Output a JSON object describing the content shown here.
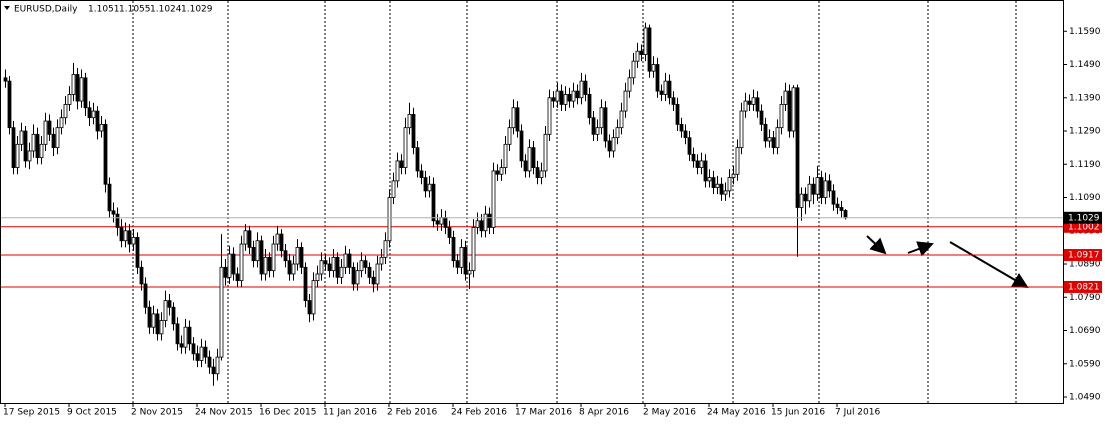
{
  "chart_data": {
    "type": "candlestick",
    "title": "EURUSD,Daily",
    "up_color": "#ffffff",
    "down_color": "#000000",
    "level_color": "#e00000",
    "grid": false,
    "ylim": [
      1.0472,
      1.1681
    ],
    "yticks": [
      {
        "value": 1.159,
        "label": "1.1590"
      },
      {
        "value": 1.149,
        "label": "1.1490"
      },
      {
        "value": 1.139,
        "label": "1.1390"
      },
      {
        "value": 1.129,
        "label": "1.1290"
      },
      {
        "value": 1.119,
        "label": "1.1190"
      },
      {
        "value": 1.109,
        "label": "1.1090"
      },
      {
        "value": 1.099,
        "label": "1.0990"
      },
      {
        "value": 1.089,
        "label": "1.0890"
      },
      {
        "value": 1.079,
        "label": "1.0790"
      },
      {
        "value": 1.069,
        "label": "1.0690"
      },
      {
        "value": 1.059,
        "label": "1.0590"
      },
      {
        "value": 1.049,
        "label": "1.0490"
      }
    ],
    "levels": [
      1.1002,
      1.0917,
      1.0821
    ],
    "categories": [
      "17 Sep 2015",
      null,
      null,
      null,
      null,
      null,
      null,
      null,
      null,
      null,
      null,
      null,
      null,
      null,
      null,
      null,
      "9 Oct 2015",
      null,
      null,
      null,
      null,
      null,
      null,
      null,
      null,
      null,
      null,
      null,
      null,
      null,
      null,
      null,
      "2 Nov 2015",
      null,
      null,
      null,
      null,
      null,
      null,
      null,
      null,
      null,
      null,
      null,
      null,
      null,
      null,
      null,
      "24 Nov 2015",
      null,
      null,
      null,
      null,
      null,
      null,
      null,
      null,
      null,
      null,
      null,
      null,
      null,
      null,
      null,
      "16 Dec 2015",
      null,
      null,
      null,
      null,
      null,
      null,
      null,
      null,
      null,
      null,
      null,
      null,
      null,
      null,
      null,
      "11 Jan 2016",
      null,
      null,
      null,
      null,
      null,
      null,
      null,
      null,
      null,
      null,
      null,
      null,
      null,
      null,
      null,
      "2 Feb 2016",
      null,
      null,
      null,
      null,
      null,
      null,
      null,
      null,
      null,
      null,
      null,
      null,
      null,
      null,
      null,
      "24 Feb 2016",
      null,
      null,
      null,
      null,
      null,
      null,
      null,
      null,
      null,
      null,
      null,
      null,
      null,
      null,
      null,
      "17 Mar 2016",
      null,
      null,
      null,
      null,
      null,
      null,
      null,
      null,
      null,
      null,
      null,
      null,
      null,
      null,
      null,
      "8 Apr 2016",
      null,
      null,
      null,
      null,
      null,
      null,
      null,
      null,
      null,
      null,
      null,
      null,
      null,
      null,
      null,
      "2 May 2016",
      null,
      null,
      null,
      null,
      null,
      null,
      null,
      null,
      null,
      null,
      null,
      null,
      null,
      null,
      null,
      "24 May 2016",
      null,
      null,
      null,
      null,
      null,
      null,
      null,
      null,
      null,
      null,
      null,
      null,
      null,
      null,
      null,
      "15 Jun 2016",
      null,
      null,
      null,
      null,
      null,
      null,
      null,
      null,
      null,
      null,
      null,
      null,
      null,
      null,
      null,
      "7 Jul 2016",
      null,
      null
    ],
    "ohlc": [
      [
        1.145,
        1.1475,
        1.142,
        1.144
      ],
      [
        1.144,
        1.1455,
        1.128,
        1.13
      ],
      [
        1.13,
        1.132,
        1.116,
        1.118
      ],
      [
        1.118,
        1.1275,
        1.116,
        1.125
      ],
      [
        1.125,
        1.1315,
        1.123,
        1.129
      ],
      [
        1.129,
        1.1305,
        1.118,
        1.12
      ],
      [
        1.12,
        1.1255,
        1.1175,
        1.123
      ],
      [
        1.123,
        1.131,
        1.121,
        1.128
      ],
      [
        1.128,
        1.13,
        1.119,
        1.121
      ],
      [
        1.121,
        1.1275,
        1.119,
        1.125
      ],
      [
        1.125,
        1.1345,
        1.123,
        1.132
      ],
      [
        1.132,
        1.134,
        1.126,
        1.128
      ],
      [
        1.128,
        1.13,
        1.1215,
        1.124
      ],
      [
        1.124,
        1.1325,
        1.122,
        1.13
      ],
      [
        1.13,
        1.1355,
        1.128,
        1.133
      ],
      [
        1.133,
        1.1395,
        1.131,
        1.137
      ],
      [
        1.137,
        1.1425,
        1.135,
        1.14
      ],
      [
        1.14,
        1.1495,
        1.138,
        1.146
      ],
      [
        1.146,
        1.148,
        1.1355,
        1.138
      ],
      [
        1.138,
        1.1475,
        1.136,
        1.145
      ],
      [
        1.145,
        1.1465,
        1.1335,
        1.136
      ],
      [
        1.136,
        1.138,
        1.1305,
        1.133
      ],
      [
        1.133,
        1.1375,
        1.131,
        1.135
      ],
      [
        1.135,
        1.1365,
        1.1265,
        1.129
      ],
      [
        1.129,
        1.1335,
        1.127,
        1.131
      ],
      [
        1.131,
        1.1325,
        1.1105,
        1.113
      ],
      [
        1.113,
        1.115,
        1.103,
        1.105
      ],
      [
        1.105,
        1.1075,
        1.1015,
        1.104
      ],
      [
        1.104,
        1.106,
        1.0975,
        1.1
      ],
      [
        1.1,
        1.1025,
        1.094,
        1.096
      ],
      [
        1.096,
        1.1015,
        1.094,
        1.099
      ],
      [
        1.099,
        1.101,
        1.0925,
        1.095
      ],
      [
        1.095,
        1.0995,
        1.093,
        1.097
      ],
      [
        1.097,
        1.0985,
        1.086,
        1.088
      ],
      [
        1.088,
        1.09,
        1.081,
        1.083
      ],
      [
        1.083,
        1.085,
        1.074,
        1.076
      ],
      [
        1.076,
        1.078,
        1.068,
        1.07
      ],
      [
        1.07,
        1.0765,
        1.068,
        1.074
      ],
      [
        1.074,
        1.0755,
        1.066,
        1.068
      ],
      [
        1.068,
        1.0745,
        1.066,
        1.072
      ],
      [
        1.072,
        1.081,
        1.07,
        1.078
      ],
      [
        1.078,
        1.08,
        1.0735,
        1.076
      ],
      [
        1.076,
        1.0775,
        1.069,
        1.071
      ],
      [
        1.071,
        1.073,
        1.063,
        1.065
      ],
      [
        1.065,
        1.0675,
        1.062,
        1.064
      ],
      [
        1.064,
        1.0725,
        1.062,
        1.07
      ],
      [
        1.07,
        1.072,
        1.063,
        1.065
      ],
      [
        1.065,
        1.067,
        1.06,
        1.062
      ],
      [
        1.062,
        1.0645,
        1.058,
        1.06
      ],
      [
        1.06,
        1.0665,
        1.058,
        1.064
      ],
      [
        1.064,
        1.066,
        1.059,
        1.061
      ],
      [
        1.061,
        1.063,
        1.056,
        1.058
      ],
      [
        1.058,
        1.0605,
        1.0524,
        1.056
      ],
      [
        1.056,
        1.0635,
        1.054,
        1.061
      ],
      [
        1.061,
        1.098,
        1.06,
        1.088
      ],
      [
        1.088,
        1.0905,
        1.0825,
        1.085
      ],
      [
        1.085,
        1.0945,
        1.083,
        1.092
      ],
      [
        1.092,
        1.094,
        1.084,
        1.086
      ],
      [
        1.086,
        1.088,
        1.082,
        1.084
      ],
      [
        1.084,
        1.0975,
        1.082,
        1.095
      ],
      [
        1.095,
        1.101,
        1.093,
        1.099
      ],
      [
        1.099,
        1.1005,
        1.092,
        1.094
      ],
      [
        1.094,
        1.096,
        1.088,
        1.09
      ],
      [
        1.09,
        1.0985,
        1.088,
        1.096
      ],
      [
        1.096,
        1.0975,
        1.084,
        1.086
      ],
      [
        1.086,
        1.0935,
        1.084,
        1.091
      ],
      [
        1.091,
        1.0925,
        1.085,
        1.087
      ],
      [
        1.087,
        1.0975,
        1.085,
        1.095
      ],
      [
        1.095,
        1.1005,
        1.093,
        1.098
      ],
      [
        1.098,
        1.0995,
        1.091,
        1.093
      ],
      [
        1.093,
        1.095,
        1.088,
        1.09
      ],
      [
        1.09,
        1.092,
        1.084,
        1.086
      ],
      [
        1.086,
        1.0915,
        1.084,
        1.089
      ],
      [
        1.089,
        1.0965,
        1.087,
        1.094
      ],
      [
        1.094,
        1.0955,
        1.086,
        1.088
      ],
      [
        1.088,
        1.0895,
        1.076,
        1.078
      ],
      [
        1.078,
        1.08,
        1.0715,
        1.074
      ],
      [
        1.074,
        1.0865,
        1.072,
        1.084
      ],
      [
        1.084,
        1.0885,
        1.082,
        1.086
      ],
      [
        1.086,
        1.0925,
        1.084,
        1.09
      ],
      [
        1.09,
        1.092,
        1.087,
        1.089
      ],
      [
        1.089,
        1.091,
        1.085,
        1.087
      ],
      [
        1.087,
        1.0935,
        1.085,
        1.091
      ],
      [
        1.091,
        1.0925,
        1.083,
        1.085
      ],
      [
        1.085,
        1.0905,
        1.083,
        1.088
      ],
      [
        1.088,
        1.0945,
        1.086,
        1.092
      ],
      [
        1.092,
        1.0935,
        1.086,
        1.088
      ],
      [
        1.088,
        1.0895,
        1.081,
        1.083
      ],
      [
        1.083,
        1.0895,
        1.081,
        1.087
      ],
      [
        1.087,
        1.0925,
        1.085,
        1.09
      ],
      [
        1.09,
        1.0915,
        1.086,
        1.088
      ],
      [
        1.088,
        1.0895,
        1.083,
        1.085
      ],
      [
        1.085,
        1.087,
        1.0805,
        1.083
      ],
      [
        1.083,
        1.0915,
        1.081,
        1.089
      ],
      [
        1.089,
        1.0935,
        1.087,
        1.091
      ],
      [
        1.091,
        1.0985,
        1.089,
        1.096
      ],
      [
        1.096,
        1.1115,
        1.094,
        1.109
      ],
      [
        1.109,
        1.1165,
        1.107,
        1.114
      ],
      [
        1.114,
        1.1225,
        1.112,
        1.12
      ],
      [
        1.12,
        1.122,
        1.116,
        1.118
      ],
      [
        1.118,
        1.133,
        1.116,
        1.13
      ],
      [
        1.13,
        1.1375,
        1.128,
        1.134
      ],
      [
        1.134,
        1.136,
        1.122,
        1.124
      ],
      [
        1.124,
        1.126,
        1.115,
        1.117
      ],
      [
        1.117,
        1.119,
        1.113,
        1.115
      ],
      [
        1.115,
        1.117,
        1.109,
        1.111
      ],
      [
        1.111,
        1.1155,
        1.109,
        1.113
      ],
      [
        1.113,
        1.115,
        1.1,
        1.102
      ],
      [
        1.102,
        1.104,
        1.099,
        1.101
      ],
      [
        1.101,
        1.1055,
        1.099,
        1.103
      ],
      [
        1.103,
        1.105,
        1.098,
        1.1
      ],
      [
        1.1,
        1.102,
        1.095,
        1.097
      ],
      [
        1.097,
        1.099,
        1.088,
        1.09
      ],
      [
        1.09,
        1.092,
        1.086,
        1.088
      ],
      [
        1.088,
        1.0965,
        1.086,
        1.094
      ],
      [
        1.094,
        1.096,
        1.084,
        1.086
      ],
      [
        1.086,
        1.0895,
        1.0815,
        1.087
      ],
      [
        1.087,
        1.1025,
        1.085,
        1.1
      ],
      [
        1.1,
        1.1045,
        1.098,
        1.102
      ],
      [
        1.102,
        1.104,
        1.097,
        1.099
      ],
      [
        1.099,
        1.1065,
        1.097,
        1.104
      ],
      [
        1.104,
        1.106,
        1.098,
        1.1
      ],
      [
        1.1,
        1.1195,
        1.098,
        1.117
      ],
      [
        1.117,
        1.119,
        1.114,
        1.116
      ],
      [
        1.116,
        1.1205,
        1.114,
        1.118
      ],
      [
        1.118,
        1.1275,
        1.116,
        1.125
      ],
      [
        1.125,
        1.1325,
        1.123,
        1.13
      ],
      [
        1.13,
        1.1385,
        1.128,
        1.136
      ],
      [
        1.136,
        1.138,
        1.127,
        1.129
      ],
      [
        1.129,
        1.131,
        1.118,
        1.12
      ],
      [
        1.12,
        1.122,
        1.115,
        1.117
      ],
      [
        1.117,
        1.1265,
        1.115,
        1.124
      ],
      [
        1.124,
        1.126,
        1.116,
        1.118
      ],
      [
        1.118,
        1.12,
        1.113,
        1.115
      ],
      [
        1.115,
        1.1195,
        1.113,
        1.117
      ],
      [
        1.117,
        1.1305,
        1.115,
        1.128
      ],
      [
        1.128,
        1.1415,
        1.126,
        1.139
      ],
      [
        1.139,
        1.141,
        1.136,
        1.138
      ],
      [
        1.138,
        1.1435,
        1.136,
        1.141
      ],
      [
        1.141,
        1.143,
        1.135,
        1.137
      ],
      [
        1.137,
        1.1425,
        1.135,
        1.14
      ],
      [
        1.14,
        1.142,
        1.136,
        1.138
      ],
      [
        1.138,
        1.1435,
        1.136,
        1.141
      ],
      [
        1.141,
        1.143,
        1.137,
        1.139
      ],
      [
        1.139,
        1.1465,
        1.137,
        1.144
      ],
      [
        1.144,
        1.146,
        1.138,
        1.14
      ],
      [
        1.14,
        1.142,
        1.131,
        1.133
      ],
      [
        1.133,
        1.135,
        1.126,
        1.128
      ],
      [
        1.128,
        1.1325,
        1.126,
        1.13
      ],
      [
        1.13,
        1.1385,
        1.128,
        1.136
      ],
      [
        1.136,
        1.138,
        1.124,
        1.126
      ],
      [
        1.126,
        1.128,
        1.121,
        1.123
      ],
      [
        1.123,
        1.1295,
        1.121,
        1.127
      ],
      [
        1.127,
        1.1325,
        1.125,
        1.13
      ],
      [
        1.13,
        1.1375,
        1.128,
        1.135
      ],
      [
        1.135,
        1.1435,
        1.133,
        1.141
      ],
      [
        1.141,
        1.1475,
        1.139,
        1.145
      ],
      [
        1.145,
        1.1525,
        1.143,
        1.15
      ],
      [
        1.15,
        1.1555,
        1.148,
        1.153
      ],
      [
        1.153,
        1.155,
        1.15,
        1.152
      ],
      [
        1.152,
        1.1616,
        1.15,
        1.16
      ],
      [
        1.16,
        1.161,
        1.145,
        1.147
      ],
      [
        1.147,
        1.1515,
        1.145,
        1.149
      ],
      [
        1.149,
        1.151,
        1.139,
        1.141
      ],
      [
        1.141,
        1.143,
        1.138,
        1.14
      ],
      [
        1.14,
        1.1465,
        1.138,
        1.144
      ],
      [
        1.144,
        1.146,
        1.137,
        1.139
      ],
      [
        1.139,
        1.141,
        1.135,
        1.137
      ],
      [
        1.137,
        1.139,
        1.129,
        1.131
      ],
      [
        1.131,
        1.133,
        1.127,
        1.129
      ],
      [
        1.129,
        1.131,
        1.125,
        1.127
      ],
      [
        1.127,
        1.129,
        1.12,
        1.122
      ],
      [
        1.122,
        1.124,
        1.118,
        1.12
      ],
      [
        1.12,
        1.122,
        1.116,
        1.118
      ],
      [
        1.118,
        1.1225,
        1.116,
        1.12
      ],
      [
        1.12,
        1.122,
        1.112,
        1.114
      ],
      [
        1.114,
        1.1175,
        1.112,
        1.115
      ],
      [
        1.115,
        1.117,
        1.11,
        1.112
      ],
      [
        1.112,
        1.1155,
        1.11,
        1.113
      ],
      [
        1.113,
        1.115,
        1.108,
        1.11
      ],
      [
        1.11,
        1.1135,
        1.108,
        1.111
      ],
      [
        1.111,
        1.1175,
        1.109,
        1.115
      ],
      [
        1.115,
        1.1185,
        1.113,
        1.116
      ],
      [
        1.116,
        1.1265,
        1.114,
        1.124
      ],
      [
        1.124,
        1.1375,
        1.122,
        1.135
      ],
      [
        1.135,
        1.1405,
        1.133,
        1.138
      ],
      [
        1.138,
        1.14,
        1.135,
        1.137
      ],
      [
        1.137,
        1.1415,
        1.135,
        1.139
      ],
      [
        1.139,
        1.141,
        1.133,
        1.135
      ],
      [
        1.135,
        1.137,
        1.129,
        1.131
      ],
      [
        1.131,
        1.133,
        1.124,
        1.126
      ],
      [
        1.126,
        1.1295,
        1.124,
        1.127
      ],
      [
        1.127,
        1.129,
        1.122,
        1.124
      ],
      [
        1.124,
        1.1325,
        1.122,
        1.13
      ],
      [
        1.13,
        1.1395,
        1.128,
        1.137
      ],
      [
        1.137,
        1.1435,
        1.135,
        1.141
      ],
      [
        1.141,
        1.143,
        1.127,
        1.129
      ],
      [
        1.129,
        1.1428,
        1.127,
        1.142
      ],
      [
        1.142,
        1.143,
        1.0912,
        1.106
      ],
      [
        1.106,
        1.112,
        1.102,
        1.11
      ],
      [
        1.11,
        1.112,
        1.104,
        1.108
      ],
      [
        1.108,
        1.1155,
        1.106,
        1.113
      ],
      [
        1.113,
        1.115,
        1.107,
        1.11
      ],
      [
        1.11,
        1.1185,
        1.108,
        1.115
      ],
      [
        1.115,
        1.117,
        1.107,
        1.109
      ],
      [
        1.109,
        1.1165,
        1.107,
        1.114
      ],
      [
        1.114,
        1.116,
        1.109,
        1.111
      ],
      [
        1.111,
        1.113,
        1.105,
        1.107
      ],
      [
        1.107,
        1.109,
        1.104,
        1.106
      ],
      [
        1.106,
        1.108,
        1.103,
        1.1051
      ],
      [
        1.1051,
        1.1055,
        1.1024,
        1.1029
      ]
    ]
  }
}
